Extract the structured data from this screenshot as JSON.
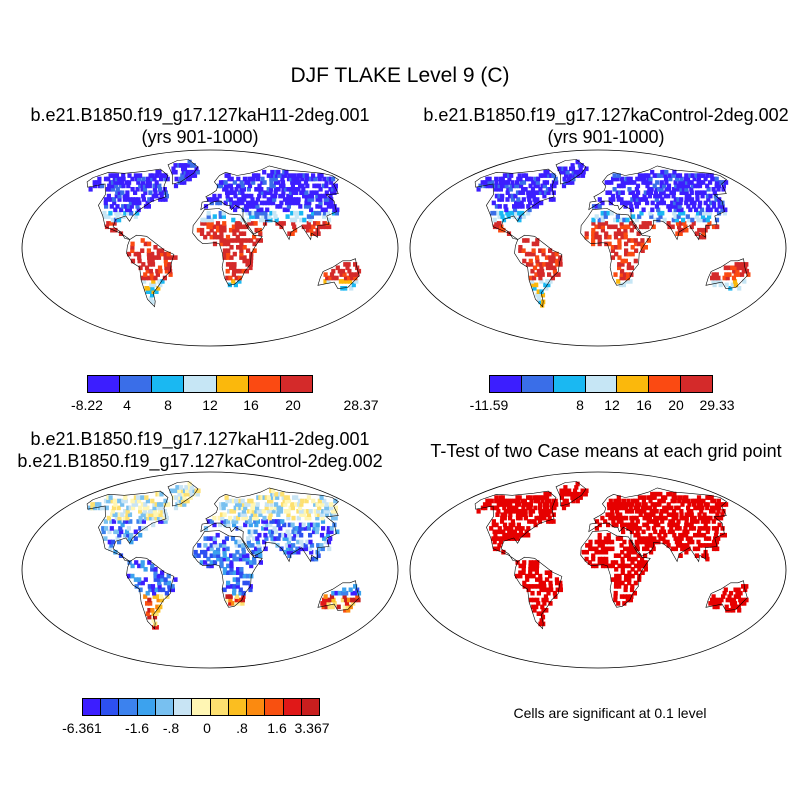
{
  "title": "DJF TLAKE Level 9 (C)",
  "panels": [
    {
      "title_lines": [
        "b.e21.B1850.f19_g17.127kaH11-2deg.001",
        "(yrs 901-1000)"
      ],
      "colorbar": {
        "colors": [
          "#3c1eff",
          "#3a6ee8",
          "#1ab8f2",
          "#c6e6f5",
          "#fbb80c",
          "#fb4a12",
          "#d42a2a"
        ],
        "labels": [
          "-8.22",
          "4",
          "8",
          "12",
          "16",
          "20",
          "28.37"
        ]
      }
    },
    {
      "title_lines": [
        "b.e21.B1850.f19_g17.127kaControl-2deg.002",
        "(yrs 901-1000)"
      ],
      "colorbar": {
        "colors": [
          "#3c1eff",
          "#3a6ee8",
          "#1ab8f2",
          "#c6e6f5",
          "#fbb80c",
          "#fb4a12",
          "#d42a2a"
        ],
        "labels": [
          "-11.59",
          "8",
          "12",
          "16",
          "20",
          "29.33"
        ]
      }
    },
    {
      "title_lines": [
        "b.e21.B1850.f19_g17.127kaH11-2deg.001",
        "b.e21.B1850.f19_g17.127kaControl-2deg.002"
      ],
      "colorbar": {
        "colors": [
          "#3c1eff",
          "#2d50f0",
          "#3c82ee",
          "#3ca2ee",
          "#78c0f0",
          "#c8e4f4",
          "#fff6b4",
          "#fde070",
          "#fbbe20",
          "#fb8a10",
          "#f85010",
          "#e01818",
          "#c81e1e"
        ],
        "labels": [
          "-6.361",
          "-1.6",
          "-.8",
          "0",
          ".8",
          "1.6",
          "3.367"
        ]
      }
    },
    {
      "title_lines": [
        "T-Test of two Case means at each grid point"
      ],
      "note": "Cells are significant at 0.1 level",
      "colors": [
        "#e60000"
      ]
    }
  ]
}
